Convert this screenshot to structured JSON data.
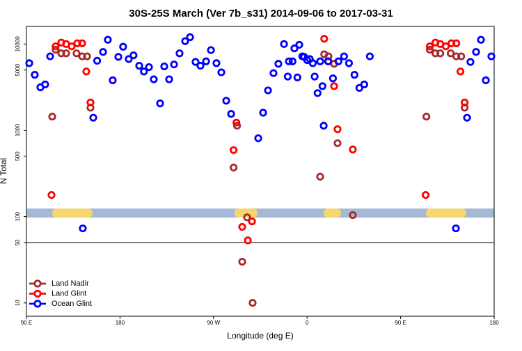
{
  "chart_data": {
    "type": "scatter",
    "title": "30S-25S March (Ver 7b_s31)   2014-09-06 to 2017-03-31",
    "x_label": "Longitude (deg E)",
    "y_label": "N Total",
    "log_y": true,
    "xlim": [
      90,
      540
    ],
    "ylim": [
      7,
      16000
    ],
    "xticks": [
      {
        "value": 90,
        "label": "90 E"
      },
      {
        "value": 180,
        "label": "180"
      },
      {
        "value": 270,
        "label": "90 W"
      },
      {
        "value": 360,
        "label": "0"
      },
      {
        "value": 450,
        "label": "90 E"
      },
      {
        "value": 540,
        "label": "180"
      }
    ],
    "yticks": [
      10,
      50,
      100,
      500,
      1000,
      5000,
      10000
    ],
    "hline": 50,
    "legend": "lower-left",
    "series": [
      {
        "name": "Land Nadir",
        "color": "#a52a2a",
        "x": [
          114.8,
          118.1,
          123.5,
          128.2,
          138.2,
          143.6,
          148.3,
          151.6,
          289.3,
          292.6,
          297.6,
          302.3,
          307.6,
          372.6,
          376.5,
          380.6,
          386.0,
          389.3,
          404.0,
          474.8,
          478.1,
          483.5,
          488.2,
          498.2,
          503.6,
          508.3,
          511.6
        ],
        "values": [
          1440,
          8600,
          7800,
          7800,
          7800,
          7200,
          7200,
          1830,
          370,
          1130,
          30,
          98,
          10,
          290,
          7600,
          7200,
          5900,
          710,
          104,
          1440,
          8600,
          7800,
          7800,
          7800,
          7200,
          7200,
          1830
        ]
      },
      {
        "name": "Land Glint",
        "color": "#ff0000",
        "x": [
          114.1,
          118.1,
          123.5,
          128.2,
          133.5,
          138.9,
          143.6,
          147.6,
          151.6,
          289.3,
          292.0,
          297.6,
          303.0,
          307.0,
          376.5,
          380.6,
          386.0,
          389.3,
          404.0,
          474.1,
          478.1,
          483.5,
          488.2,
          493.5,
          498.9,
          503.6,
          507.6,
          511.6
        ],
        "values": [
          178,
          9400,
          10400,
          10000,
          9400,
          10200,
          10200,
          4800,
          2100,
          590,
          1230,
          76,
          53,
          88,
          11500,
          6300,
          3250,
          1030,
          600,
          178,
          9400,
          10400,
          10000,
          9400,
          10200,
          10200,
          4800,
          2100
        ]
      },
      {
        "name": "Ocean Glint",
        "color": "#0000ff",
        "x": [
          92.7,
          98.0,
          103.4,
          108.0,
          112.8,
          144.2,
          154.3,
          158.0,
          163.7,
          168.3,
          173.0,
          178.4,
          183.0,
          188.4,
          193.0,
          198.5,
          203.0,
          207.9,
          212.5,
          218.6,
          222.6,
          227.3,
          232.0,
          237.3,
          242.7,
          247.4,
          252.7,
          257.4,
          262.8,
          267.5,
          272.8,
          277.5,
          282.2,
          286.9,
          313.0,
          317.7,
          322.4,
          327.7,
          332.4,
          337.8,
          342.5,
          347.8,
          352.5,
          357.2,
          362.6,
          367.3,
          372.6,
          376.0,
          341.4,
          346.0,
          350.7,
          355.4,
          360.1,
          365.5,
          370.1,
          374.8,
          380.2,
          384.9,
          390.2,
          395.6,
          400.3,
          405.6,
          410.3,
          415.0,
          420.4,
          503.2,
          513.9,
          517.2,
          522.6,
          527.3,
          532.0,
          537.3
        ],
        "values": [
          6000,
          4400,
          3150,
          3400,
          7200,
          73,
          1400,
          6400,
          8100,
          11200,
          3800,
          7100,
          9300,
          6700,
          7400,
          5600,
          4800,
          5400,
          3900,
          2050,
          5500,
          3900,
          5800,
          7800,
          10800,
          12000,
          6200,
          5600,
          6300,
          8500,
          6000,
          4700,
          2200,
          1550,
          810,
          1600,
          2900,
          4600,
          5900,
          10000,
          6300,
          8900,
          9800,
          7100,
          6700,
          4200,
          6300,
          1130,
          4200,
          6300,
          4100,
          7200,
          6500,
          6000,
          2700,
          3250,
          6300,
          4000,
          6300,
          7200,
          6000,
          4400,
          3100,
          3400,
          7200,
          73,
          1400,
          6200,
          8100,
          11200,
          3800,
          7200
        ]
      }
    ]
  }
}
